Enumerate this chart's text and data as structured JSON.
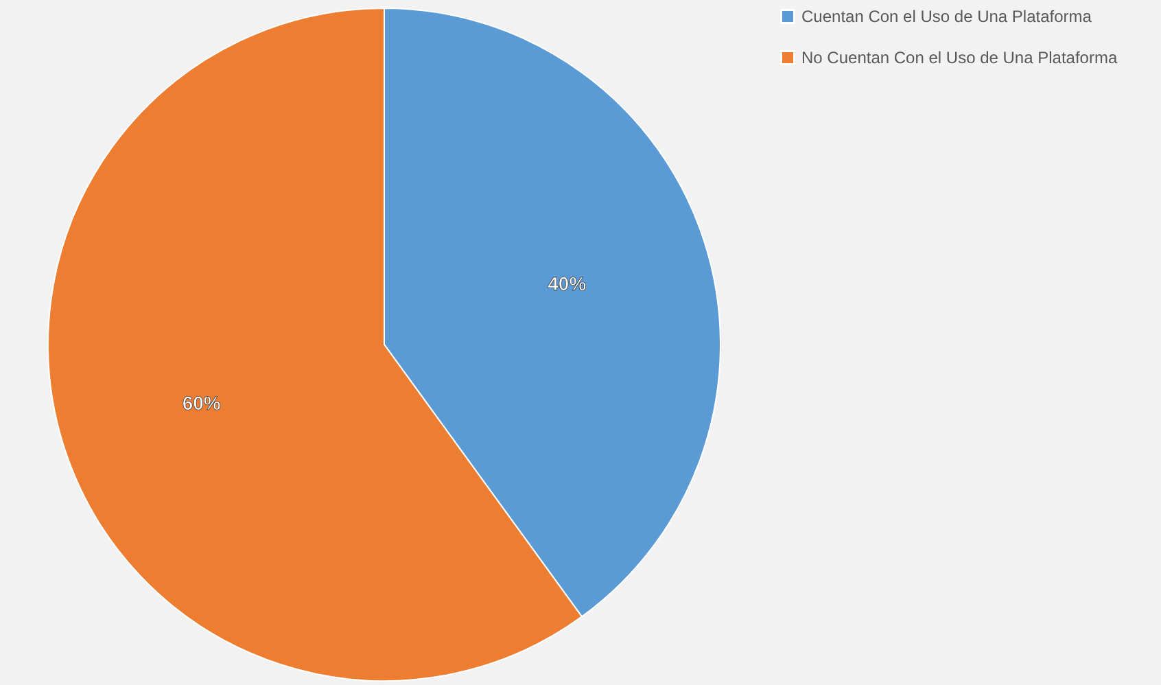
{
  "chart_data": {
    "type": "pie",
    "categories": [
      "Cuentan Con el Uso de Una Plataforma",
      "No Cuentan Con el Uso de Una Plataforma"
    ],
    "values": [
      40,
      60
    ],
    "colors": [
      "#5b9bd5",
      "#ed7d31"
    ],
    "value_labels": [
      "40%",
      "60%"
    ],
    "legend": "right"
  }
}
